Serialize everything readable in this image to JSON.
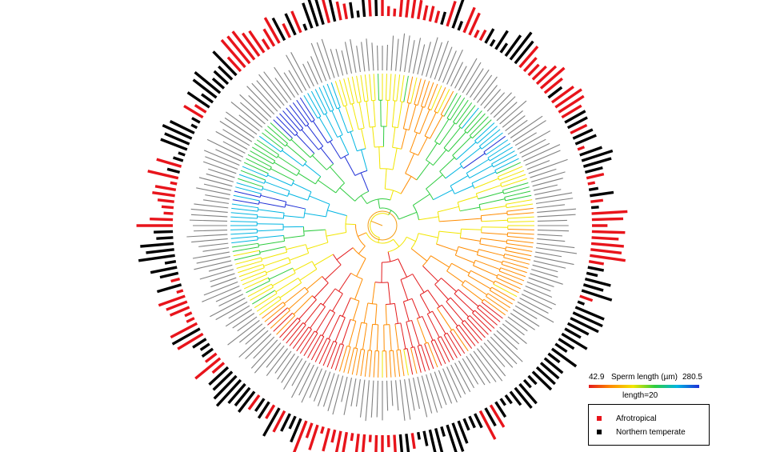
{
  "colorbar": {
    "min_label": "42.9",
    "max_label": "280.5",
    "title": "Sperm length (µm)",
    "scale_label": "length=20",
    "colors": [
      "#e31a1c",
      "#ff8c00",
      "#f2e600",
      "#2ecc40",
      "#00b5e2",
      "#1f2fd6"
    ]
  },
  "legend": {
    "items": [
      {
        "label": "Afrotropical",
        "color": "#e8141b"
      },
      {
        "label": "Northern temperate",
        "color": "#000000"
      }
    ]
  },
  "colors": {
    "afrotropical": "#e8141b",
    "northern_temperate": "#000000",
    "label_text": "#555555"
  },
  "tree": {
    "type": "circular phylogeny",
    "tip_count": 220,
    "tip_labels_legible": false
  }
}
